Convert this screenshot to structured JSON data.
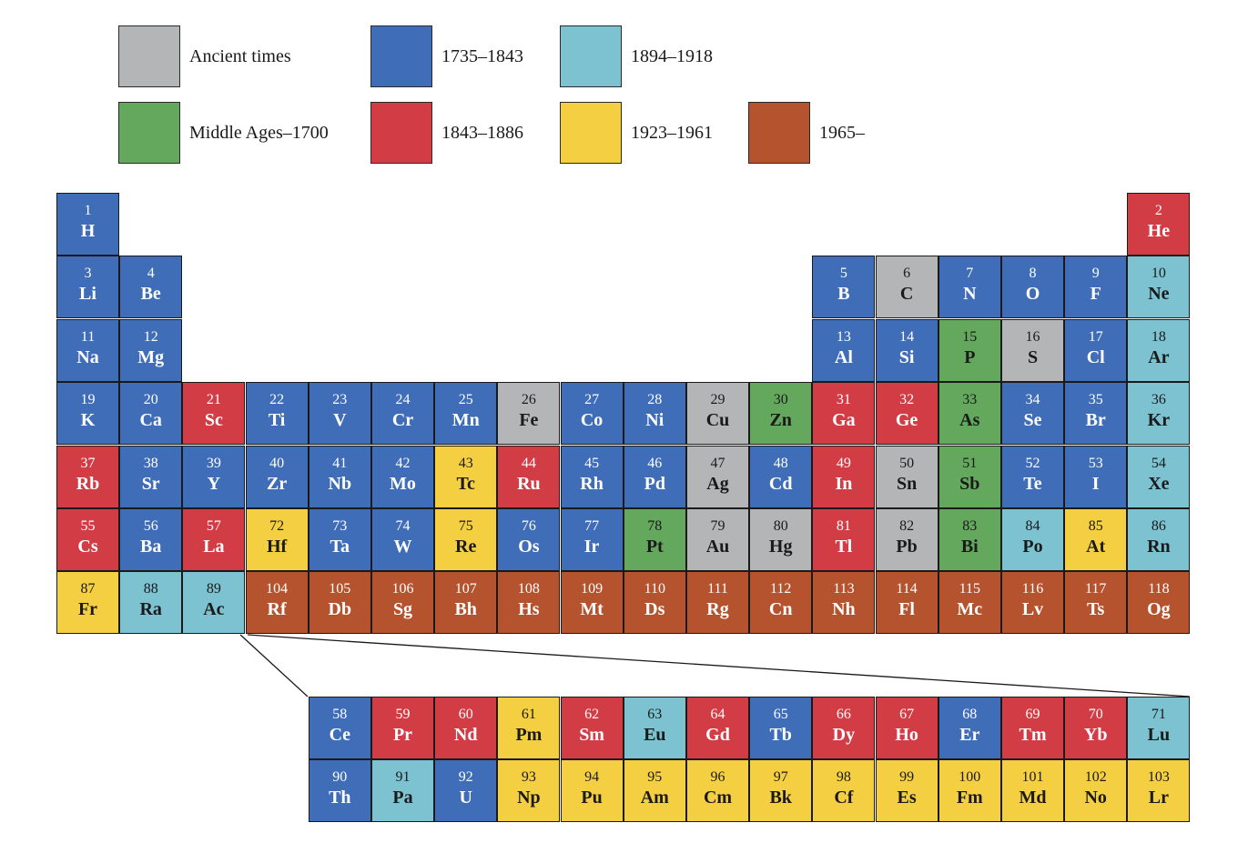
{
  "colors": {
    "ancient": "#b4b5b7",
    "middle": "#63a85d",
    "p1735": "#3f6db8",
    "p1843": "#d23c45",
    "p1894": "#7cc2d1",
    "p1923": "#f5cf42",
    "p1965": "#b5532e"
  },
  "legend": [
    {
      "key": "ancient",
      "label": "Ancient times"
    },
    {
      "key": "p1735",
      "label": "1735–1843"
    },
    {
      "key": "p1894",
      "label": "1894–1918"
    },
    {
      "key": "middle",
      "label": "Middle Ages–1700"
    },
    {
      "key": "p1843",
      "label": "1843–1886"
    },
    {
      "key": "p1923",
      "label": "1923–1961"
    },
    {
      "key": "p1965",
      "label": "1965–"
    }
  ],
  "elements": [
    {
      "n": 1,
      "s": "H",
      "period": 1,
      "group": 1,
      "era": "p1735"
    },
    {
      "n": 2,
      "s": "He",
      "period": 1,
      "group": 18,
      "era": "p1843"
    },
    {
      "n": 3,
      "s": "Li",
      "period": 2,
      "group": 1,
      "era": "p1735"
    },
    {
      "n": 4,
      "s": "Be",
      "period": 2,
      "group": 2,
      "era": "p1735"
    },
    {
      "n": 5,
      "s": "B",
      "period": 2,
      "group": 13,
      "era": "p1735"
    },
    {
      "n": 6,
      "s": "C",
      "period": 2,
      "group": 14,
      "era": "ancient"
    },
    {
      "n": 7,
      "s": "N",
      "period": 2,
      "group": 15,
      "era": "p1735"
    },
    {
      "n": 8,
      "s": "O",
      "period": 2,
      "group": 16,
      "era": "p1735"
    },
    {
      "n": 9,
      "s": "F",
      "period": 2,
      "group": 17,
      "era": "p1735"
    },
    {
      "n": 10,
      "s": "Ne",
      "period": 2,
      "group": 18,
      "era": "p1894"
    },
    {
      "n": 11,
      "s": "Na",
      "period": 3,
      "group": 1,
      "era": "p1735"
    },
    {
      "n": 12,
      "s": "Mg",
      "period": 3,
      "group": 2,
      "era": "p1735"
    },
    {
      "n": 13,
      "s": "Al",
      "period": 3,
      "group": 13,
      "era": "p1735"
    },
    {
      "n": 14,
      "s": "Si",
      "period": 3,
      "group": 14,
      "era": "p1735"
    },
    {
      "n": 15,
      "s": "P",
      "period": 3,
      "group": 15,
      "era": "middle"
    },
    {
      "n": 16,
      "s": "S",
      "period": 3,
      "group": 16,
      "era": "ancient"
    },
    {
      "n": 17,
      "s": "Cl",
      "period": 3,
      "group": 17,
      "era": "p1735"
    },
    {
      "n": 18,
      "s": "Ar",
      "period": 3,
      "group": 18,
      "era": "p1894"
    },
    {
      "n": 19,
      "s": "K",
      "period": 4,
      "group": 1,
      "era": "p1735"
    },
    {
      "n": 20,
      "s": "Ca",
      "period": 4,
      "group": 2,
      "era": "p1735"
    },
    {
      "n": 21,
      "s": "Sc",
      "period": 4,
      "group": 3,
      "era": "p1843"
    },
    {
      "n": 22,
      "s": "Ti",
      "period": 4,
      "group": 4,
      "era": "p1735"
    },
    {
      "n": 23,
      "s": "V",
      "period": 4,
      "group": 5,
      "era": "p1735"
    },
    {
      "n": 24,
      "s": "Cr",
      "period": 4,
      "group": 6,
      "era": "p1735"
    },
    {
      "n": 25,
      "s": "Mn",
      "period": 4,
      "group": 7,
      "era": "p1735"
    },
    {
      "n": 26,
      "s": "Fe",
      "period": 4,
      "group": 8,
      "era": "ancient"
    },
    {
      "n": 27,
      "s": "Co",
      "period": 4,
      "group": 9,
      "era": "p1735"
    },
    {
      "n": 28,
      "s": "Ni",
      "period": 4,
      "group": 10,
      "era": "p1735"
    },
    {
      "n": 29,
      "s": "Cu",
      "period": 4,
      "group": 11,
      "era": "ancient"
    },
    {
      "n": 30,
      "s": "Zn",
      "period": 4,
      "group": 12,
      "era": "middle"
    },
    {
      "n": 31,
      "s": "Ga",
      "period": 4,
      "group": 13,
      "era": "p1843"
    },
    {
      "n": 32,
      "s": "Ge",
      "period": 4,
      "group": 14,
      "era": "p1843"
    },
    {
      "n": 33,
      "s": "As",
      "period": 4,
      "group": 15,
      "era": "middle"
    },
    {
      "n": 34,
      "s": "Se",
      "period": 4,
      "group": 16,
      "era": "p1735"
    },
    {
      "n": 35,
      "s": "Br",
      "period": 4,
      "group": 17,
      "era": "p1735"
    },
    {
      "n": 36,
      "s": "Kr",
      "period": 4,
      "group": 18,
      "era": "p1894"
    },
    {
      "n": 37,
      "s": "Rb",
      "period": 5,
      "group": 1,
      "era": "p1843"
    },
    {
      "n": 38,
      "s": "Sr",
      "period": 5,
      "group": 2,
      "era": "p1735"
    },
    {
      "n": 39,
      "s": "Y",
      "period": 5,
      "group": 3,
      "era": "p1735"
    },
    {
      "n": 40,
      "s": "Zr",
      "period": 5,
      "group": 4,
      "era": "p1735"
    },
    {
      "n": 41,
      "s": "Nb",
      "period": 5,
      "group": 5,
      "era": "p1735"
    },
    {
      "n": 42,
      "s": "Mo",
      "period": 5,
      "group": 6,
      "era": "p1735"
    },
    {
      "n": 43,
      "s": "Tc",
      "period": 5,
      "group": 7,
      "era": "p1923"
    },
    {
      "n": 44,
      "s": "Ru",
      "period": 5,
      "group": 8,
      "era": "p1843"
    },
    {
      "n": 45,
      "s": "Rh",
      "period": 5,
      "group": 9,
      "era": "p1735"
    },
    {
      "n": 46,
      "s": "Pd",
      "period": 5,
      "group": 10,
      "era": "p1735"
    },
    {
      "n": 47,
      "s": "Ag",
      "period": 5,
      "group": 11,
      "era": "ancient"
    },
    {
      "n": 48,
      "s": "Cd",
      "period": 5,
      "group": 12,
      "era": "p1735"
    },
    {
      "n": 49,
      "s": "In",
      "period": 5,
      "group": 13,
      "era": "p1843"
    },
    {
      "n": 50,
      "s": "Sn",
      "period": 5,
      "group": 14,
      "era": "ancient"
    },
    {
      "n": 51,
      "s": "Sb",
      "period": 5,
      "group": 15,
      "era": "middle"
    },
    {
      "n": 52,
      "s": "Te",
      "period": 5,
      "group": 16,
      "era": "p1735"
    },
    {
      "n": 53,
      "s": "I",
      "period": 5,
      "group": 17,
      "era": "p1735"
    },
    {
      "n": 54,
      "s": "Xe",
      "period": 5,
      "group": 18,
      "era": "p1894"
    },
    {
      "n": 55,
      "s": "Cs",
      "period": 6,
      "group": 1,
      "era": "p1843"
    },
    {
      "n": 56,
      "s": "Ba",
      "period": 6,
      "group": 2,
      "era": "p1735"
    },
    {
      "n": 57,
      "s": "La",
      "period": 6,
      "group": 3,
      "era": "p1843"
    },
    {
      "n": 72,
      "s": "Hf",
      "period": 6,
      "group": 4,
      "era": "p1923"
    },
    {
      "n": 73,
      "s": "Ta",
      "period": 6,
      "group": 5,
      "era": "p1735"
    },
    {
      "n": 74,
      "s": "W",
      "period": 6,
      "group": 6,
      "era": "p1735"
    },
    {
      "n": 75,
      "s": "Re",
      "period": 6,
      "group": 7,
      "era": "p1923"
    },
    {
      "n": 76,
      "s": "Os",
      "period": 6,
      "group": 8,
      "era": "p1735"
    },
    {
      "n": 77,
      "s": "Ir",
      "period": 6,
      "group": 9,
      "era": "p1735"
    },
    {
      "n": 78,
      "s": "Pt",
      "period": 6,
      "group": 10,
      "era": "middle"
    },
    {
      "n": 79,
      "s": "Au",
      "period": 6,
      "group": 11,
      "era": "ancient"
    },
    {
      "n": 80,
      "s": "Hg",
      "period": 6,
      "group": 12,
      "era": "ancient"
    },
    {
      "n": 81,
      "s": "Tl",
      "period": 6,
      "group": 13,
      "era": "p1843"
    },
    {
      "n": 82,
      "s": "Pb",
      "period": 6,
      "group": 14,
      "era": "ancient"
    },
    {
      "n": 83,
      "s": "Bi",
      "period": 6,
      "group": 15,
      "era": "middle"
    },
    {
      "n": 84,
      "s": "Po",
      "period": 6,
      "group": 16,
      "era": "p1894"
    },
    {
      "n": 85,
      "s": "At",
      "period": 6,
      "group": 17,
      "era": "p1923"
    },
    {
      "n": 86,
      "s": "Rn",
      "period": 6,
      "group": 18,
      "era": "p1894"
    },
    {
      "n": 87,
      "s": "Fr",
      "period": 7,
      "group": 1,
      "era": "p1923"
    },
    {
      "n": 88,
      "s": "Ra",
      "period": 7,
      "group": 2,
      "era": "p1894"
    },
    {
      "n": 89,
      "s": "Ac",
      "period": 7,
      "group": 3,
      "era": "p1894"
    },
    {
      "n": 104,
      "s": "Rf",
      "period": 7,
      "group": 4,
      "era": "p1965"
    },
    {
      "n": 105,
      "s": "Db",
      "period": 7,
      "group": 5,
      "era": "p1965"
    },
    {
      "n": 106,
      "s": "Sg",
      "period": 7,
      "group": 6,
      "era": "p1965"
    },
    {
      "n": 107,
      "s": "Bh",
      "period": 7,
      "group": 7,
      "era": "p1965"
    },
    {
      "n": 108,
      "s": "Hs",
      "period": 7,
      "group": 8,
      "era": "p1965"
    },
    {
      "n": 109,
      "s": "Mt",
      "period": 7,
      "group": 9,
      "era": "p1965"
    },
    {
      "n": 110,
      "s": "Ds",
      "period": 7,
      "group": 10,
      "era": "p1965"
    },
    {
      "n": 111,
      "s": "Rg",
      "period": 7,
      "group": 11,
      "era": "p1965"
    },
    {
      "n": 112,
      "s": "Cn",
      "period": 7,
      "group": 12,
      "era": "p1965"
    },
    {
      "n": 113,
      "s": "Nh",
      "period": 7,
      "group": 13,
      "era": "p1965"
    },
    {
      "n": 114,
      "s": "Fl",
      "period": 7,
      "group": 14,
      "era": "p1965"
    },
    {
      "n": 115,
      "s": "Mc",
      "period": 7,
      "group": 15,
      "era": "p1965"
    },
    {
      "n": 116,
      "s": "Lv",
      "period": 7,
      "group": 16,
      "era": "p1965"
    },
    {
      "n": 117,
      "s": "Ts",
      "period": 7,
      "group": 17,
      "era": "p1965"
    },
    {
      "n": 118,
      "s": "Og",
      "period": 7,
      "group": 18,
      "era": "p1965"
    }
  ],
  "lanthanides": [
    {
      "n": 58,
      "s": "Ce",
      "era": "p1735"
    },
    {
      "n": 59,
      "s": "Pr",
      "era": "p1843"
    },
    {
      "n": 60,
      "s": "Nd",
      "era": "p1843"
    },
    {
      "n": 61,
      "s": "Pm",
      "era": "p1923"
    },
    {
      "n": 62,
      "s": "Sm",
      "era": "p1843"
    },
    {
      "n": 63,
      "s": "Eu",
      "era": "p1894"
    },
    {
      "n": 64,
      "s": "Gd",
      "era": "p1843"
    },
    {
      "n": 65,
      "s": "Tb",
      "era": "p1735"
    },
    {
      "n": 66,
      "s": "Dy",
      "era": "p1843"
    },
    {
      "n": 67,
      "s": "Ho",
      "era": "p1843"
    },
    {
      "n": 68,
      "s": "Er",
      "era": "p1735"
    },
    {
      "n": 69,
      "s": "Tm",
      "era": "p1843"
    },
    {
      "n": 70,
      "s": "Yb",
      "era": "p1843"
    },
    {
      "n": 71,
      "s": "Lu",
      "era": "p1894"
    }
  ],
  "actinides": [
    {
      "n": 90,
      "s": "Th",
      "era": "p1735"
    },
    {
      "n": 91,
      "s": "Pa",
      "era": "p1894"
    },
    {
      "n": 92,
      "s": "U",
      "era": "p1735"
    },
    {
      "n": 93,
      "s": "Np",
      "era": "p1923"
    },
    {
      "n": 94,
      "s": "Pu",
      "era": "p1923"
    },
    {
      "n": 95,
      "s": "Am",
      "era": "p1923"
    },
    {
      "n": 96,
      "s": "Cm",
      "era": "p1923"
    },
    {
      "n": 97,
      "s": "Bk",
      "era": "p1923"
    },
    {
      "n": 98,
      "s": "Cf",
      "era": "p1923"
    },
    {
      "n": 99,
      "s": "Es",
      "era": "p1923"
    },
    {
      "n": 100,
      "s": "Fm",
      "era": "p1923"
    },
    {
      "n": 101,
      "s": "Md",
      "era": "p1923"
    },
    {
      "n": 102,
      "s": "No",
      "era": "p1923"
    },
    {
      "n": 103,
      "s": "Lr",
      "era": "p1923"
    }
  ]
}
